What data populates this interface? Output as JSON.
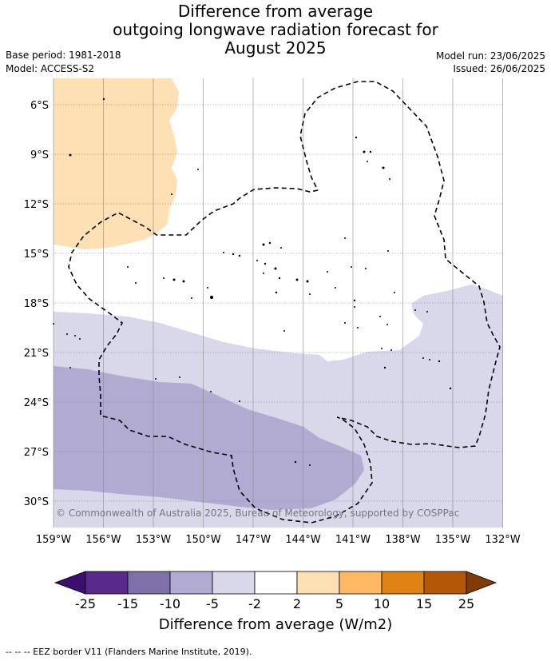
{
  "title": {
    "line1": "Difference from average",
    "line2": "outgoing longwave radiation forecast for",
    "line3": "August 2025"
  },
  "meta": {
    "base_period": "Base period: 1981-2018",
    "model": "Model: ACCESS-S2",
    "model_run": "Model run: 23/06/2025",
    "issued": "Issued: 26/06/2025"
  },
  "axes": {
    "lon_labels": [
      "159°W",
      "156°W",
      "153°W",
      "150°W",
      "147°W",
      "144°W",
      "141°W",
      "138°W",
      "135°W",
      "132°W"
    ],
    "lat_labels": [
      "6°S",
      "9°S",
      "12°S",
      "15°S",
      "18°S",
      "21°S",
      "24°S",
      "27°S",
      "30°S"
    ]
  },
  "copyright": "© Commonwealth of Australia 2025, Bureau of Meteorology, supported by COSPPac",
  "colorbar": {
    "title": "Difference from average (W/m2)",
    "tick_labels": [
      "-25",
      "-15",
      "-10",
      "-5",
      "-2",
      "2",
      "5",
      "10",
      "15",
      "25"
    ],
    "colors": {
      "below_-25": "#3b0f6f",
      "-25_-15": "#5a2a8a",
      "-15_-10": "#8070aa",
      "-10_-5": "#b1abd2",
      "-5_-2": "#d8d8ea",
      "-2_2": "#ffffff",
      "2_5": "#fde0b3",
      "5_10": "#fdb863",
      "10_15": "#e08214",
      "15_25": "#b35806",
      "above_25": "#7f3b08"
    }
  },
  "legend_note": "--  --  -- EEZ border V11 (Flanders Marine Institute, 2019)."
}
